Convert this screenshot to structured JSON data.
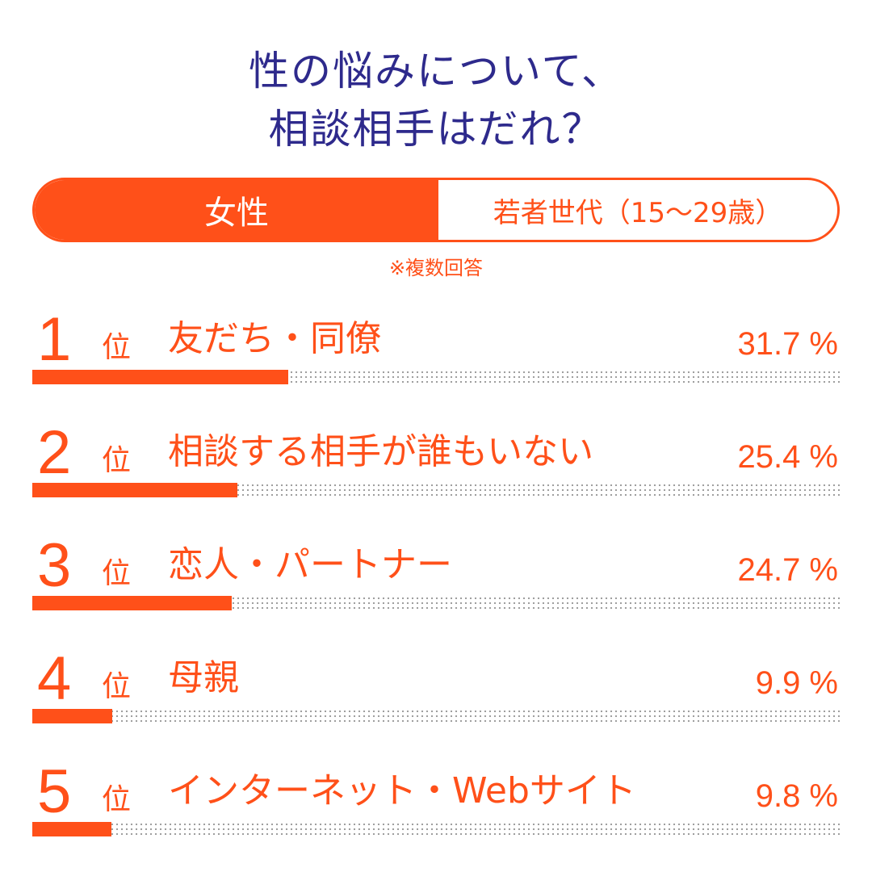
{
  "title": {
    "line1": "性の悩みについて、",
    "line2": "相談相手はだれ？"
  },
  "segment": {
    "left_label": "女性",
    "right_label": "若者世代（15～29歳）"
  },
  "note": "※複数回答",
  "colors": {
    "accent": "#ff5019",
    "title": "#2e2a8c"
  },
  "chart_data": {
    "type": "bar",
    "orientation": "horizontal",
    "xlim": [
      0,
      100
    ],
    "rank_suffix": "位",
    "items": [
      {
        "rank": "1",
        "label": "友だち・同僚",
        "value": 31.7,
        "value_text": "31.7 %"
      },
      {
        "rank": "2",
        "label": "相談する相手が誰もいない",
        "value": 25.4,
        "value_text": "25.4 %"
      },
      {
        "rank": "3",
        "label": "恋人・パートナー",
        "value": 24.7,
        "value_text": "24.7 %"
      },
      {
        "rank": "4",
        "label": "母親",
        "value": 9.9,
        "value_text": "9.9 %"
      },
      {
        "rank": "5",
        "label": "インターネット・Webサイト",
        "value": 9.8,
        "value_text": "9.8 %"
      }
    ]
  }
}
